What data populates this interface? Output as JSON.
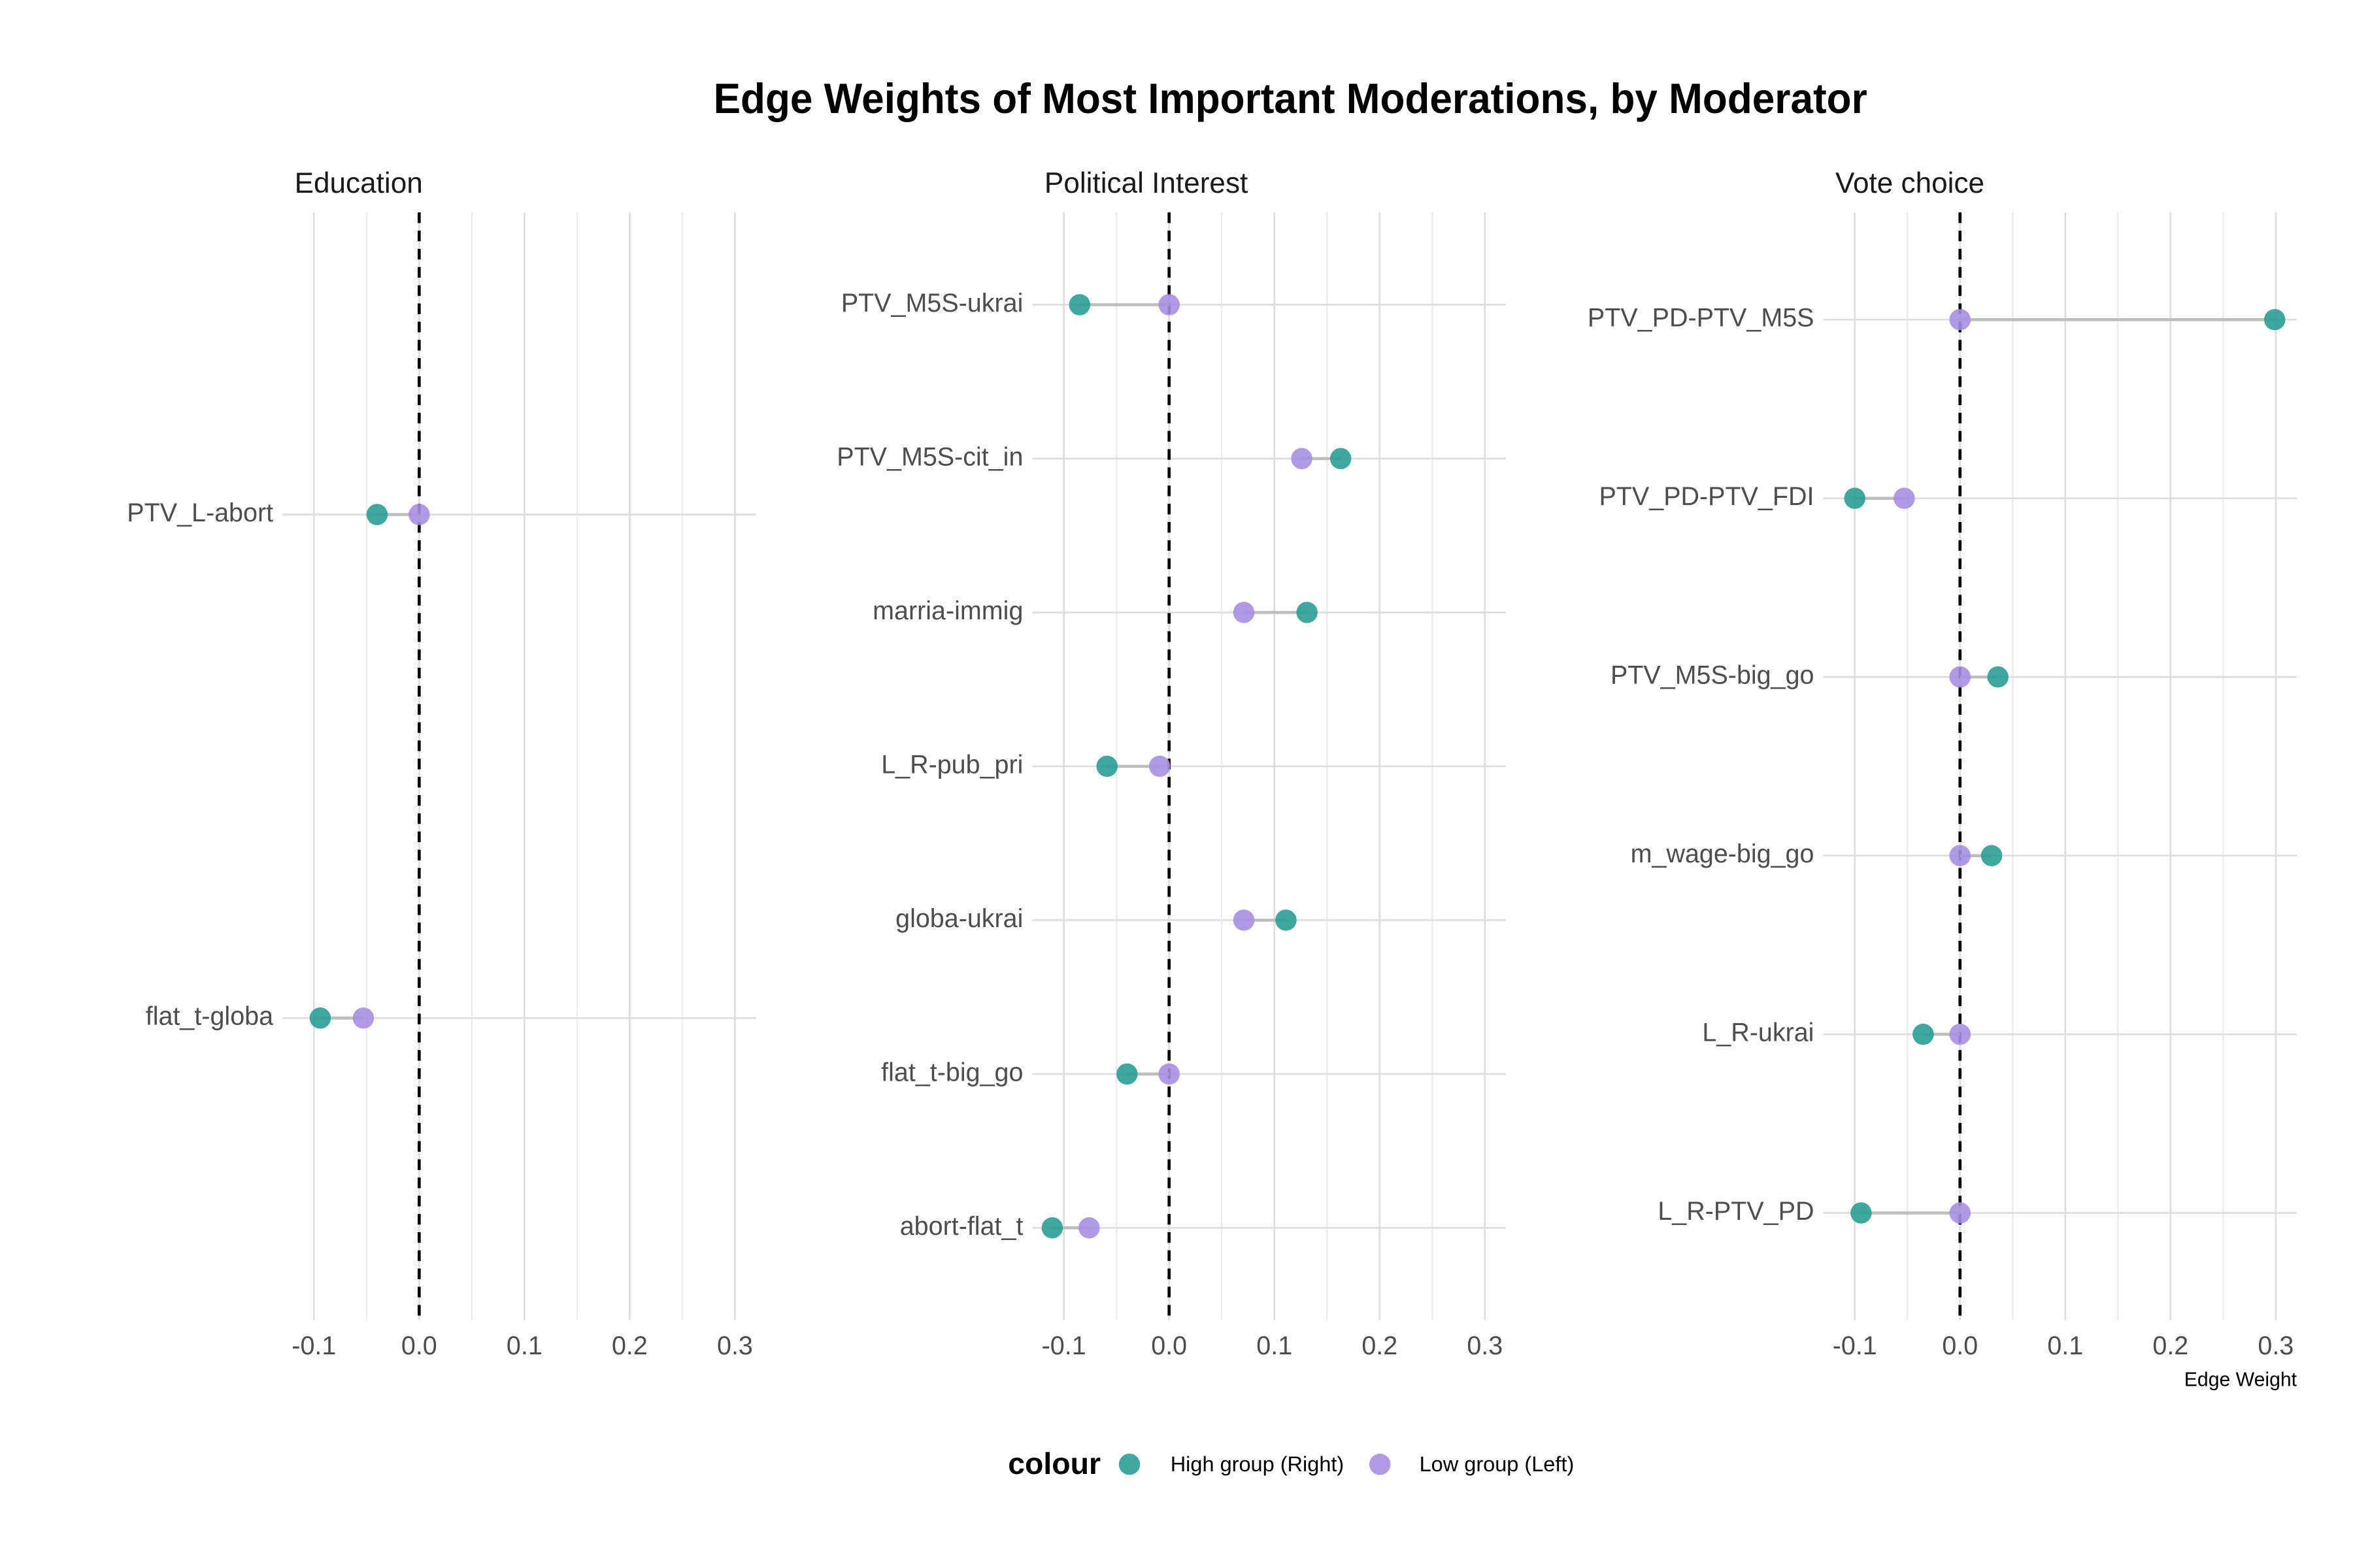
{
  "title": "Edge Weights of Most Important Moderations, by Moderator",
  "legend_title": "colour",
  "chart_data": [
    {
      "type": "dumbbell",
      "title": "Education",
      "categories": [
        "PTV_L-abort",
        "flat_t-globa"
      ],
      "series": [
        {
          "name": "High group (Right)",
          "color": "#2a9d94",
          "values": [
            -0.04,
            -0.094
          ]
        },
        {
          "name": "Low group (Left)",
          "color": "#a88ee0",
          "values": [
            0,
            -0.053
          ]
        }
      ],
      "xlim": [
        -0.13,
        0.32
      ],
      "xticks": [
        -0.1,
        {
          "value": 0,
          "label": "0.0"
        },
        0.1,
        0.2,
        0.3
      ],
      "vline": 0,
      "grid": true
    },
    {
      "type": "dumbbell",
      "title": "Political Interest",
      "categories": [
        "PTV_M5S-ukrai",
        "PTV_M5S-cit_in",
        "marria-immig",
        "L_R-pub_pri",
        "globa-ukrai",
        "flat_t-big_go",
        "abort-flat_t"
      ],
      "series": [
        {
          "name": "High group (Right)",
          "color": "#2a9d94",
          "values": [
            -0.085,
            0.163,
            0.131,
            -0.059,
            0.111,
            -0.04,
            -0.111
          ]
        },
        {
          "name": "Low group (Left)",
          "color": "#a88ee0",
          "values": [
            0,
            0.126,
            0.071,
            -0.009,
            0.071,
            0,
            -0.076
          ]
        }
      ],
      "xlim": [
        -0.13,
        0.32
      ],
      "xticks": [
        -0.1,
        {
          "value": 0,
          "label": "0.0"
        },
        0.1,
        0.2,
        0.3
      ],
      "vline": 0,
      "grid": true
    },
    {
      "type": "dumbbell",
      "title": "Vote choice",
      "categories": [
        "PTV_PD-PTV_M5S",
        "PTV_PD-PTV_FDI",
        "PTV_M5S-big_go",
        "m_wage-big_go",
        "L_R-ukrai",
        "L_R-PTV_PD"
      ],
      "series": [
        {
          "name": "High group (Right)",
          "color": "#2a9d94",
          "values": [
            0.299,
            -0.1,
            0.036,
            0.03,
            -0.035,
            -0.094
          ]
        },
        {
          "name": "Low group (Left)",
          "color": "#a88ee0",
          "values": [
            0,
            -0.053,
            0,
            0,
            0,
            0
          ]
        }
      ],
      "xlim": [
        -0.13,
        0.32
      ],
      "xticks": [
        -0.1,
        {
          "value": 0,
          "label": "0.0"
        },
        0.1,
        0.2,
        0.3
      ],
      "x_label": "Edge Weight",
      "vline": 0,
      "grid": true
    }
  ]
}
